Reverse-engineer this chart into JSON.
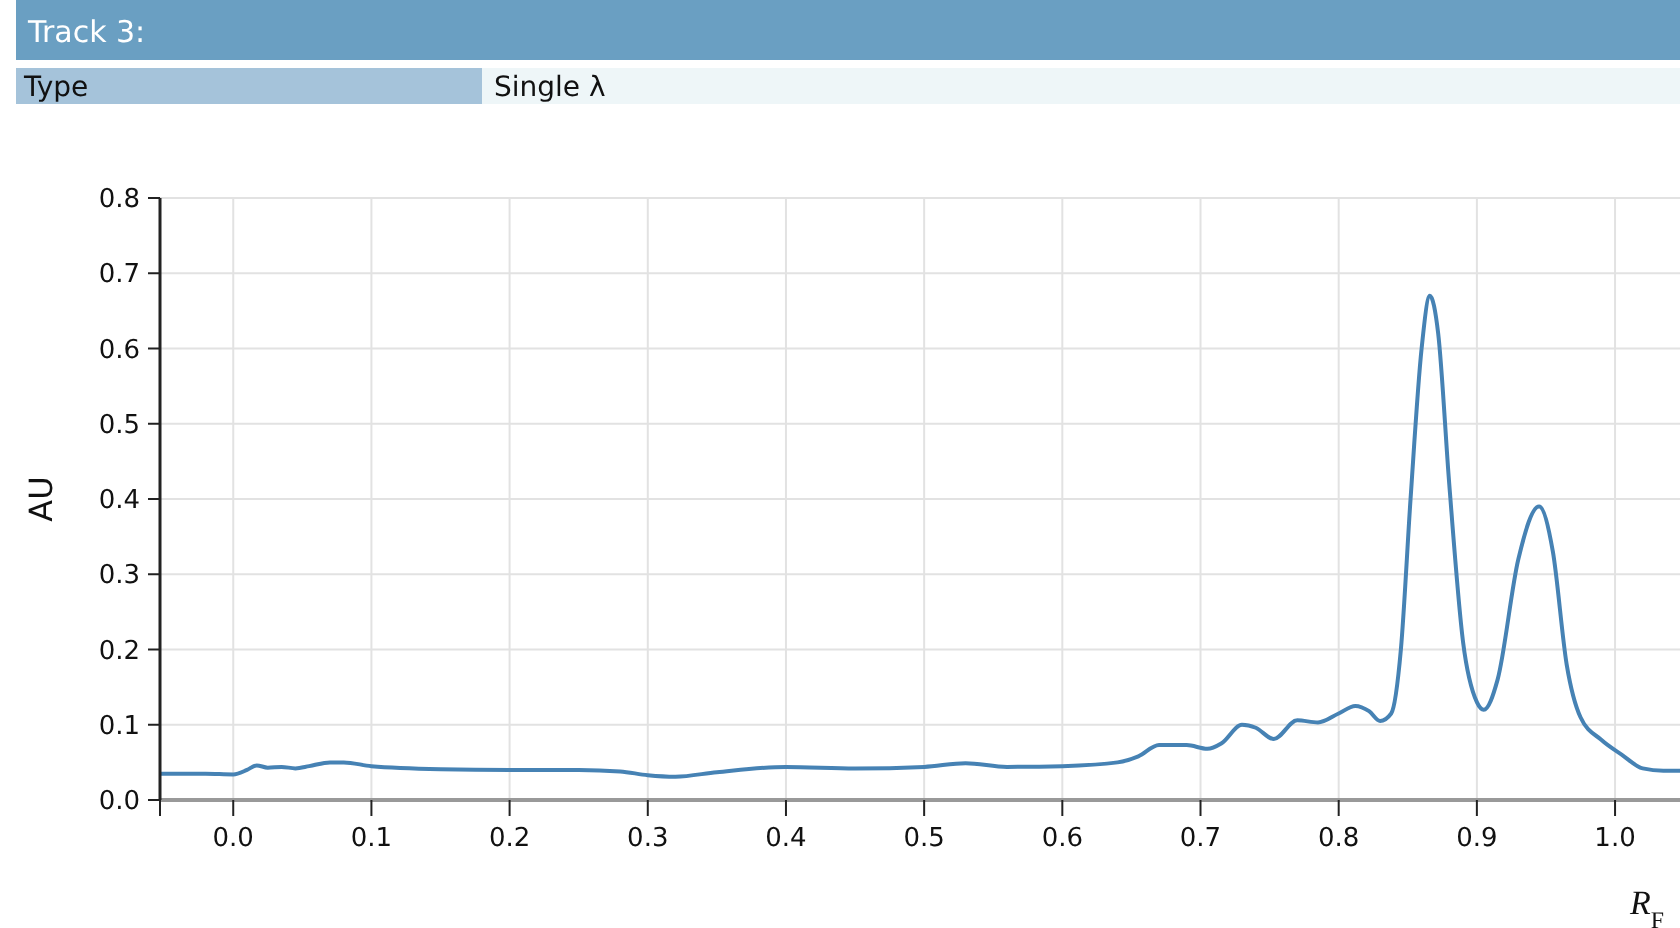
{
  "chart_data": {
    "type": "line",
    "title": "Track 3:",
    "annotations": [
      "Type",
      "Single λ"
    ],
    "xlabel": "R$_{F}$",
    "ylabel": "AU",
    "xlim": [
      -0.053,
      1.047
    ],
    "ylim": [
      0,
      0.8
    ],
    "xticks": [
      {
        "value": 0,
        "label": "0.0"
      },
      0.1,
      0.2,
      0.3,
      0.4,
      0.5,
      0.6,
      0.7,
      0.8,
      0.9,
      {
        "value": 1,
        "label": "1.0"
      }
    ],
    "yticks": [
      {
        "value": 0,
        "label": "0.0"
      },
      0.1,
      0.2,
      0.3,
      0.4,
      0.5,
      0.6,
      0.7,
      0.8
    ],
    "grid": true,
    "marker": "none",
    "line_style": "solid",
    "x": [
      -0.053,
      -0.02,
      0,
      0.01,
      0.017,
      0.025,
      0.035,
      0.045,
      0.055,
      0.07,
      0.08,
      0.1,
      0.15,
      0.2,
      0.25,
      0.28,
      0.3,
      0.32,
      0.35,
      0.4,
      0.45,
      0.5,
      0.53,
      0.56,
      0.6,
      0.64,
      0.655,
      0.67,
      0.69,
      0.705,
      0.715,
      0.73,
      0.74,
      0.753,
      0.77,
      0.785,
      0.8,
      0.812,
      0.822,
      0.83,
      0.838,
      0.845,
      0.852,
      0.86,
      0.866,
      0.872,
      0.88,
      0.89,
      0.9,
      0.905,
      0.915,
      0.93,
      0.945,
      0.955,
      0.965,
      0.975,
      0.99,
      1.005,
      1.02,
      1.035,
      1.047
    ],
    "series": [
      {
        "color": "#4682b4",
        "values": [
          0.035,
          0.035,
          0.034,
          0.04,
          0.046,
          0.043,
          0.044,
          0.042,
          0.045,
          0.05,
          0.05,
          0.045,
          0.041,
          0.04,
          0.04,
          0.038,
          0.033,
          0.031,
          0.037,
          0.044,
          0.042,
          0.044,
          0.049,
          0.044,
          0.045,
          0.05,
          0.058,
          0.073,
          0.073,
          0.068,
          0.075,
          0.1,
          0.096,
          0.081,
          0.106,
          0.103,
          0.115,
          0.125,
          0.118,
          0.105,
          0.115,
          0.2,
          0.4,
          0.6,
          0.67,
          0.62,
          0.42,
          0.21,
          0.13,
          0.12,
          0.16,
          0.32,
          0.39,
          0.33,
          0.18,
          0.11,
          0.08,
          0.06,
          0.042,
          0.039,
          0.039
        ]
      }
    ]
  }
}
